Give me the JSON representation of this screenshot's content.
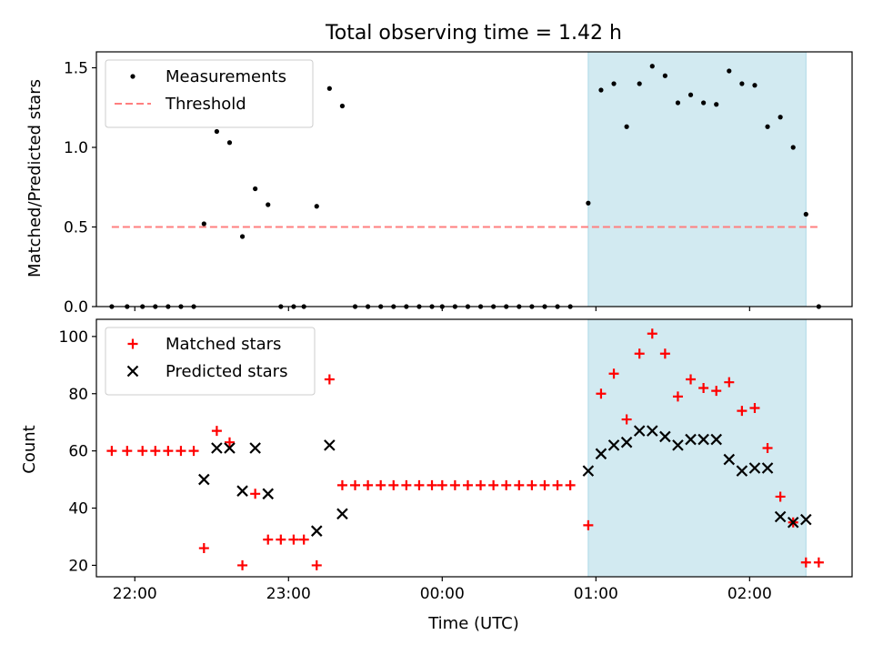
{
  "chart_data": {
    "type": "scatter",
    "title": "Total observing time = 1.42 h",
    "xlabel": "Time (UTC)",
    "x_axis": {
      "unit": "time_of_day_hours_wrapping_midnight",
      "start": "21:45",
      "end": "02:40",
      "ticks": [
        "22:00",
        "23:00",
        "00:00",
        "01:00",
        "02:00"
      ]
    },
    "highlight": {
      "color": "#add8e6",
      "x_start": "00:57",
      "x_end": "02:22"
    },
    "top_panel": {
      "ylabel": "Matched/Predicted stars",
      "ylim": [
        0,
        1.6
      ],
      "yticks": [
        "0.0",
        "0.5",
        "1.0",
        "1.5"
      ],
      "legend_placement": "upper-left",
      "series": [
        {
          "name": "Measurements",
          "kind": "dot",
          "color": "#000000",
          "points": [
            [
              "21:51",
              0
            ],
            [
              "21:57",
              0
            ],
            [
              "22:03",
              0
            ],
            [
              "22:08",
              0
            ],
            [
              "22:13",
              0
            ],
            [
              "22:18",
              0
            ],
            [
              "22:23",
              0
            ],
            [
              "22:27",
              0.52
            ],
            [
              "22:32",
              1.1
            ],
            [
              "22:37",
              1.03
            ],
            [
              "22:42",
              0.44
            ],
            [
              "22:47",
              0.74
            ],
            [
              "22:52",
              0.64
            ],
            [
              "22:57",
              0
            ],
            [
              "23:02",
              0
            ],
            [
              "23:06",
              0
            ],
            [
              "23:11",
              0.63
            ],
            [
              "23:16",
              1.37
            ],
            [
              "23:21",
              1.26
            ],
            [
              "23:26",
              0
            ],
            [
              "23:31",
              0
            ],
            [
              "23:36",
              0
            ],
            [
              "23:41",
              0
            ],
            [
              "23:46",
              0
            ],
            [
              "23:51",
              0
            ],
            [
              "23:56",
              0
            ],
            [
              "00:00",
              0
            ],
            [
              "00:05",
              0
            ],
            [
              "00:10",
              0
            ],
            [
              "00:15",
              0
            ],
            [
              "00:20",
              0
            ],
            [
              "00:25",
              0
            ],
            [
              "00:30",
              0
            ],
            [
              "00:35",
              0
            ],
            [
              "00:40",
              0
            ],
            [
              "00:45",
              0
            ],
            [
              "00:50",
              0
            ],
            [
              "00:57",
              0.65
            ],
            [
              "01:02",
              1.36
            ],
            [
              "01:07",
              1.4
            ],
            [
              "01:12",
              1.13
            ],
            [
              "01:17",
              1.4
            ],
            [
              "01:22",
              1.51
            ],
            [
              "01:27",
              1.45
            ],
            [
              "01:32",
              1.28
            ],
            [
              "01:37",
              1.33
            ],
            [
              "01:42",
              1.28
            ],
            [
              "01:47",
              1.27
            ],
            [
              "01:52",
              1.48
            ],
            [
              "01:57",
              1.4
            ],
            [
              "02:02",
              1.39
            ],
            [
              "02:07",
              1.13
            ],
            [
              "02:12",
              1.19
            ],
            [
              "02:17",
              1.0
            ],
            [
              "02:22",
              0.58
            ],
            [
              "02:27",
              0
            ]
          ]
        },
        {
          "name": "Threshold",
          "kind": "dashed-line",
          "color": "#ff7f7f",
          "points": [
            [
              "21:51",
              0.5
            ],
            [
              "02:27",
              0.5
            ]
          ]
        }
      ]
    },
    "bottom_panel": {
      "ylabel": "Count",
      "ylim": [
        16,
        106
      ],
      "yticks": [
        "20",
        "40",
        "60",
        "80",
        "100"
      ],
      "legend_placement": "upper-left",
      "series": [
        {
          "name": "Matched stars",
          "kind": "plus",
          "color": "#ff0000",
          "points": [
            [
              "21:51",
              60
            ],
            [
              "21:57",
              60
            ],
            [
              "22:03",
              60
            ],
            [
              "22:08",
              60
            ],
            [
              "22:13",
              60
            ],
            [
              "22:18",
              60
            ],
            [
              "22:23",
              60
            ],
            [
              "22:27",
              26
            ],
            [
              "22:32",
              67
            ],
            [
              "22:37",
              63
            ],
            [
              "22:42",
              20
            ],
            [
              "22:47",
              45
            ],
            [
              "22:52",
              29
            ],
            [
              "22:57",
              29
            ],
            [
              "23:02",
              29
            ],
            [
              "23:06",
              29
            ],
            [
              "23:11",
              20
            ],
            [
              "23:16",
              85
            ],
            [
              "23:21",
              48
            ],
            [
              "23:26",
              48
            ],
            [
              "23:31",
              48
            ],
            [
              "23:36",
              48
            ],
            [
              "23:41",
              48
            ],
            [
              "23:46",
              48
            ],
            [
              "23:51",
              48
            ],
            [
              "23:56",
              48
            ],
            [
              "00:00",
              48
            ],
            [
              "00:05",
              48
            ],
            [
              "00:10",
              48
            ],
            [
              "00:15",
              48
            ],
            [
              "00:20",
              48
            ],
            [
              "00:25",
              48
            ],
            [
              "00:30",
              48
            ],
            [
              "00:35",
              48
            ],
            [
              "00:40",
              48
            ],
            [
              "00:45",
              48
            ],
            [
              "00:50",
              48
            ],
            [
              "00:57",
              34
            ],
            [
              "01:02",
              80
            ],
            [
              "01:07",
              87
            ],
            [
              "01:12",
              71
            ],
            [
              "01:17",
              94
            ],
            [
              "01:22",
              101
            ],
            [
              "01:27",
              94
            ],
            [
              "01:32",
              79
            ],
            [
              "01:37",
              85
            ],
            [
              "01:42",
              82
            ],
            [
              "01:47",
              81
            ],
            [
              "01:52",
              84
            ],
            [
              "01:57",
              74
            ],
            [
              "02:02",
              75
            ],
            [
              "02:07",
              61
            ],
            [
              "02:12",
              44
            ],
            [
              "02:17",
              35
            ],
            [
              "02:22",
              21
            ],
            [
              "02:27",
              21
            ]
          ]
        },
        {
          "name": "Predicted stars",
          "kind": "x",
          "color": "#000000",
          "points": [
            [
              "22:27",
              50
            ],
            [
              "22:32",
              61
            ],
            [
              "22:37",
              61
            ],
            [
              "22:42",
              46
            ],
            [
              "22:47",
              61
            ],
            [
              "22:52",
              45
            ],
            [
              "23:11",
              32
            ],
            [
              "23:16",
              62
            ],
            [
              "23:21",
              38
            ],
            [
              "00:57",
              53
            ],
            [
              "01:02",
              59
            ],
            [
              "01:07",
              62
            ],
            [
              "01:12",
              63
            ],
            [
              "01:17",
              67
            ],
            [
              "01:22",
              67
            ],
            [
              "01:27",
              65
            ],
            [
              "01:32",
              62
            ],
            [
              "01:37",
              64
            ],
            [
              "01:42",
              64
            ],
            [
              "01:47",
              64
            ],
            [
              "01:52",
              57
            ],
            [
              "01:57",
              53
            ],
            [
              "02:02",
              54
            ],
            [
              "02:07",
              54
            ],
            [
              "02:12",
              37
            ],
            [
              "02:17",
              35
            ],
            [
              "02:22",
              36
            ]
          ]
        }
      ]
    }
  }
}
